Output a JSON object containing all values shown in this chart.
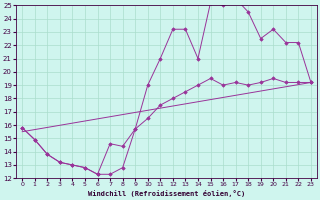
{
  "xlabel": "Windchill (Refroidissement éolien,°C)",
  "background_color": "#cff5ee",
  "grid_color": "#aaddcc",
  "line_color": "#993399",
  "xlim": [
    -0.5,
    23.5
  ],
  "ylim": [
    12,
    25
  ],
  "xticks": [
    0,
    1,
    2,
    3,
    4,
    5,
    6,
    7,
    8,
    9,
    10,
    11,
    12,
    13,
    14,
    15,
    16,
    17,
    18,
    19,
    20,
    21,
    22,
    23
  ],
  "yticks": [
    12,
    13,
    14,
    15,
    16,
    17,
    18,
    19,
    20,
    21,
    22,
    23,
    24,
    25
  ],
  "line1_x": [
    0,
    1,
    2,
    3,
    4,
    5,
    6,
    7,
    8,
    9,
    10,
    11,
    12,
    13,
    14,
    15,
    16,
    17,
    18,
    19,
    20,
    21,
    22,
    23
  ],
  "line1_y": [
    15.8,
    14.9,
    13.8,
    13.2,
    13.0,
    12.8,
    12.3,
    14.6,
    14.4,
    15.7,
    19.0,
    21.0,
    23.2,
    23.2,
    21.0,
    25.2,
    25.0,
    25.5,
    24.5,
    22.5,
    23.2,
    22.2,
    22.2,
    19.2
  ],
  "line2_x": [
    0,
    1,
    2,
    3,
    4,
    5,
    6,
    7,
    8,
    9,
    10,
    11,
    12,
    13,
    14,
    15,
    16,
    17,
    18,
    19,
    20,
    21,
    22,
    23
  ],
  "line2_y": [
    15.8,
    14.9,
    13.8,
    13.2,
    13.0,
    12.8,
    12.3,
    12.3,
    12.8,
    15.7,
    16.5,
    17.5,
    18.0,
    18.5,
    19.0,
    19.5,
    19.0,
    19.2,
    19.0,
    19.2,
    19.5,
    19.2,
    19.2,
    19.2
  ],
  "line3_x": [
    0,
    23
  ],
  "line3_y": [
    15.5,
    19.2
  ]
}
